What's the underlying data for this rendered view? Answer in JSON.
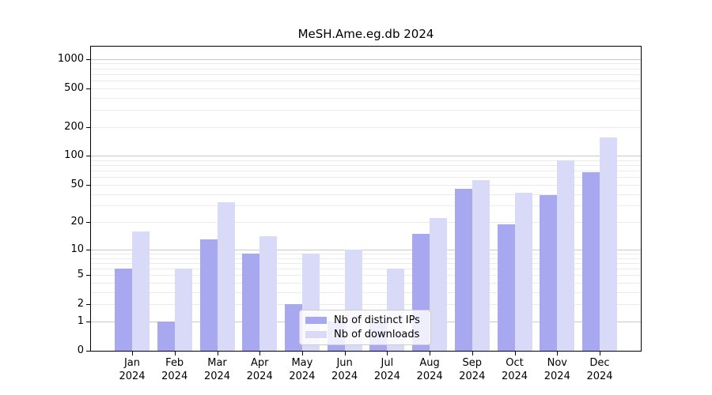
{
  "figure": {
    "title": "MeSH.Ame.eg.db 2024"
  },
  "chart_data": {
    "type": "bar",
    "title": "MeSH.Ame.eg.db 2024",
    "xlabel": "",
    "ylabel": "",
    "x_categories": [
      "Jan",
      "Feb",
      "Mar",
      "Apr",
      "May",
      "Jun",
      "Jul",
      "Aug",
      "Sep",
      "Oct",
      "Nov",
      "Dec"
    ],
    "x_year_line": "2024",
    "series": [
      {
        "name": "Nb of distinct IPs",
        "color": "#a8a8f0",
        "values": [
          6,
          1,
          13,
          9,
          2,
          1,
          1,
          15,
          45,
          19,
          39,
          67
        ]
      },
      {
        "name": "Nb of downloads",
        "color": "#d9d9f8",
        "values": [
          16,
          6,
          33,
          14,
          9,
          10,
          6,
          22,
          56,
          41,
          90,
          155
        ]
      }
    ],
    "y_scale": "log1p",
    "y_ticks": [
      0,
      1,
      2,
      5,
      10,
      20,
      50,
      100,
      200,
      500,
      1000
    ],
    "y_major_gridlines": [
      1,
      10,
      100,
      1000
    ],
    "y_minor_gridlines": [
      2,
      3,
      4,
      5,
      6,
      7,
      8,
      9,
      20,
      30,
      40,
      50,
      60,
      70,
      80,
      90,
      200,
      300,
      400,
      500,
      600,
      700,
      800,
      900
    ],
    "ylim": [
      0,
      1340
    ],
    "grid": true,
    "legend_position": "lower-center",
    "legend_labels": [
      "Nb of distinct IPs",
      "Nb of downloads"
    ]
  }
}
